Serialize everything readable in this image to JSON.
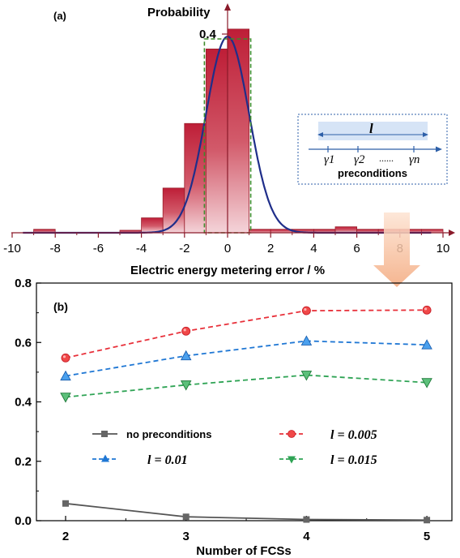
{
  "panel_a": {
    "label": "(a)",
    "ylabel": "Probability",
    "ytick": "0.4",
    "xlabel": "Electric energy metering error / %",
    "xticks": [
      "-10",
      "-8",
      "-6",
      "-4",
      "-2",
      "0",
      "2",
      "4",
      "6",
      "8",
      "10"
    ],
    "inset": {
      "l_label": "l",
      "gammas": [
        "γ1",
        "γ2",
        "......",
        "γn"
      ],
      "caption": "preconditions"
    }
  },
  "panel_b": {
    "label": "(b)",
    "xlabel": "Number of FCSs",
    "xticks": [
      "2",
      "3",
      "4",
      "5"
    ],
    "yticks": [
      "0.0",
      "0.2",
      "0.4",
      "0.6",
      "0.8"
    ],
    "legend": {
      "no_pre": "no preconditions",
      "l005": "l = 0.005",
      "l01": "l = 0.01",
      "l015": "l = 0.015"
    }
  },
  "chart_data": [
    {
      "type": "bar",
      "x_range": [
        -10,
        10
      ],
      "bin_edges": [
        -9,
        -8,
        -7,
        -6,
        -5,
        -4,
        -3,
        -2,
        -1,
        0,
        1,
        2,
        3,
        4,
        5,
        6,
        7,
        8,
        9,
        10
      ],
      "bin_heights": [
        0.007,
        0.0,
        0.0,
        0.0,
        0.005,
        0.03,
        0.09,
        0.22,
        0.37,
        0.41,
        0.007,
        0.007,
        0.007,
        0.007,
        0.012,
        0.007,
        0.007,
        0.007,
        0.007
      ],
      "curve": {
        "type": "normal",
        "mean": 0,
        "std": 1.0,
        "peak": 0.395
      },
      "colors": {
        "bar": "#be1e37",
        "curve": "#1f2e8a",
        "highlight": "#3d8a2a"
      },
      "highlight_range": [
        -1,
        1
      ]
    },
    {
      "type": "line",
      "x": [
        2,
        3,
        4,
        5
      ],
      "ylim": [
        0,
        0.8
      ],
      "series": [
        {
          "name": "no preconditions",
          "values": [
            0.058,
            0.013,
            0.004,
            0.002
          ],
          "color": "#555555",
          "marker": "square",
          "dash": false
        },
        {
          "name": "l = 0.005",
          "values": [
            0.548,
            0.638,
            0.707,
            0.709
          ],
          "color": "#e8303a",
          "marker": "circle",
          "dash": true
        },
        {
          "name": "l = 0.01",
          "values": [
            0.487,
            0.555,
            0.605,
            0.592
          ],
          "color": "#1f77d4",
          "marker": "triangle-up",
          "dash": true
        },
        {
          "name": "l = 0.015",
          "values": [
            0.416,
            0.457,
            0.49,
            0.465
          ],
          "color": "#2ea354",
          "marker": "triangle-down",
          "dash": true
        }
      ]
    }
  ]
}
